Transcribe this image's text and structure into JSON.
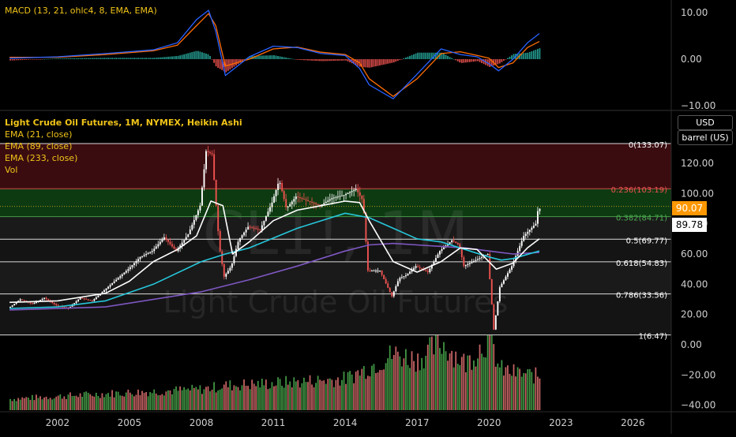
{
  "header": {
    "macd_label": "MACD (13, 21, ohlc4, 8, EMA, EMA)",
    "symbol_title": "Light Crude Oil Futures, 1M, NYMEX, Heikin Ashi",
    "ema1": "EMA (21, close)",
    "ema2": "EMA (89, close)",
    "ema3": "EMA (233, close)",
    "vol": "Vol",
    "currency": "USD",
    "unit": "barrel (US)",
    "watermark_symbol": "CL1!, 1M",
    "watermark_name": "Light Crude Oil Futures"
  },
  "price_tags": {
    "last": "90.07",
    "ema": "89.78"
  },
  "colors": {
    "up": "#26a69a",
    "down": "#ef5350",
    "candle_up": "#ffffff",
    "macd_line": "#2962ff",
    "signal_line": "#ff6d00",
    "ema21": "#ffffff",
    "ema89": "#26c6da",
    "ema233": "#7e57c2",
    "last_tag": "#ff9800",
    "fib_top": "#3b0a0a",
    "fib_green": "#0b3d0b"
  },
  "chart_data": [
    {
      "type": "bar",
      "panel": "macd",
      "y_ticks": [
        "10.00",
        "0.00",
        "−10.00"
      ],
      "y_tick_values": [
        10,
        0,
        -10
      ],
      "ylim": [
        -12,
        14
      ],
      "series": [
        {
          "kind": "line",
          "x": [
            2000,
            2002,
            2004,
            2006,
            2007,
            2007.8,
            2008.3,
            2008.6,
            2009,
            2010,
            2011,
            2012,
            2013,
            2014,
            2014.6,
            2015,
            2016,
            2017,
            2018,
            2018.8,
            2019.5,
            2020,
            2020.4,
            2021,
            2021.6,
            2022.1
          ],
          "values": [
            0.2,
            0.5,
            1.2,
            2.0,
            3.5,
            8.5,
            10.5,
            6,
            -3.5,
            0.5,
            2.8,
            2.5,
            1.2,
            0.8,
            -2,
            -5.5,
            -8.5,
            -3.2,
            2.2,
            1,
            0.5,
            -1,
            -2.5,
            0,
            3.5,
            5.5
          ]
        },
        {
          "kind": "line",
          "x": [
            2000,
            2002,
            2004,
            2006,
            2007,
            2007.8,
            2008.3,
            2008.6,
            2009,
            2010,
            2011,
            2012,
            2013,
            2014,
            2014.6,
            2015,
            2016,
            2017,
            2018,
            2018.8,
            2019.5,
            2020,
            2020.4,
            2021,
            2021.6,
            2022.1
          ],
          "values": [
            0.4,
            0.4,
            1.0,
            1.8,
            3.0,
            7.2,
            9.8,
            7.2,
            -1.5,
            0,
            2.2,
            2.6,
            1.5,
            1.0,
            -0.8,
            -4.2,
            -8.0,
            -4.2,
            1.2,
            1.6,
            0.8,
            0.2,
            -1.8,
            -0.8,
            2.5,
            3.8
          ]
        }
      ]
    },
    {
      "type": "line",
      "panel": "price",
      "x_ticks": [
        "2002",
        "2005",
        "2008",
        "2011",
        "2014",
        "2017",
        "2020",
        "2023",
        "2026"
      ],
      "x_tick_values": [
        2002,
        2005,
        2008,
        2011,
        2014,
        2017,
        2020,
        2023,
        2026
      ],
      "xlim": [
        1999.6,
        2027.6
      ],
      "y_ticks": [
        "120.00",
        "100.00",
        "80.00",
        "60.00",
        "40.00",
        "20.00",
        "0.00",
        "−20.00",
        "−40.00"
      ],
      "y_tick_values": [
        120,
        100,
        80,
        60,
        40,
        20,
        0,
        -20,
        -40
      ],
      "ylim": [
        -40,
        135
      ],
      "fib_levels": [
        {
          "label": "0(133.07)",
          "value": 133.07
        },
        {
          "label": "0.236(103.19)",
          "value": 103.19
        },
        {
          "label": "0.382(84.71)",
          "value": 84.71
        },
        {
          "label": "0.5(69.77)",
          "value": 69.77
        },
        {
          "label": "0.618(54.83)",
          "value": 54.83
        },
        {
          "label": "0.786(33.56)",
          "value": 33.56
        },
        {
          "label": "1(6.47)",
          "value": 6.47
        }
      ],
      "extra_level": 91.5,
      "price": {
        "x": [
          2000,
          2000.5,
          2001,
          2001.5,
          2002,
          2002.5,
          2003,
          2003.5,
          2004,
          2004.5,
          2005,
          2005.5,
          2006,
          2006.5,
          2007,
          2007.5,
          2008,
          2008.25,
          2008.5,
          2008.8,
          2009,
          2009.3,
          2009.6,
          2010,
          2010.5,
          2011,
          2011.3,
          2011.6,
          2012,
          2012.5,
          2013,
          2013.5,
          2014,
          2014.5,
          2014.8,
          2015,
          2015.5,
          2016,
          2016.3,
          2016.6,
          2017,
          2017.5,
          2018,
          2018.5,
          2018.8,
          2019,
          2019.5,
          2020,
          2020.25,
          2020.5,
          2021,
          2021.5,
          2022,
          2022.1
        ],
        "values": [
          24,
          30,
          27,
          31,
          26,
          24,
          31,
          29,
          36,
          43,
          50,
          58,
          62,
          71,
          62,
          73,
          92,
          128,
          126,
          65,
          45,
          52,
          69,
          78,
          76,
          94,
          109,
          90,
          98,
          95,
          92,
          97,
          99,
          103,
          95,
          49,
          49,
          32,
          44,
          46,
          52,
          48,
          62,
          69,
          66,
          52,
          56,
          60,
          10,
          38,
          52,
          72,
          80,
          90
        ]
      },
      "ema21": {
        "x": [
          2000,
          2002,
          2004,
          2005,
          2006,
          2007,
          2007.8,
          2008.4,
          2008.9,
          2009.3,
          2010,
          2011,
          2012,
          2013,
          2014,
          2014.6,
          2015,
          2016,
          2017,
          2018,
          2018.8,
          2019.5,
          2020.3,
          2021,
          2021.6,
          2022.1
        ],
        "values": [
          28,
          29,
          34,
          42,
          55,
          63,
          72,
          95,
          92,
          60,
          68,
          82,
          89,
          92,
          95,
          94,
          82,
          55,
          48,
          55,
          64,
          63,
          50,
          54,
          64,
          70
        ]
      },
      "ema89": {
        "x": [
          2000,
          2002,
          2004,
          2006,
          2008,
          2009,
          2010,
          2012,
          2014,
          2015,
          2016,
          2017,
          2018,
          2019,
          2020,
          2020.5,
          2021,
          2022.1
        ],
        "values": [
          24,
          25,
          29,
          40,
          55,
          60,
          64,
          77,
          87,
          84,
          77,
          70,
          68,
          63,
          58,
          56,
          57,
          62
        ]
      },
      "ema233": {
        "x": [
          2000,
          2004,
          2008,
          2010,
          2012,
          2014,
          2015,
          2016,
          2017,
          2018,
          2019,
          2020,
          2021,
          2022.1
        ],
        "values": [
          23,
          25,
          35,
          43,
          52,
          62,
          66,
          67,
          66,
          65,
          64,
          62,
          60,
          61
        ]
      },
      "volume_rel": {
        "x": [
          2000,
          2004,
          2008,
          2009,
          2011,
          2014,
          2015,
          2016,
          2017,
          2018,
          2019,
          2020,
          2020.4,
          2021,
          2022.1
        ],
        "values": [
          0.15,
          0.22,
          0.28,
          0.33,
          0.36,
          0.42,
          0.58,
          0.75,
          0.68,
          0.9,
          0.62,
          0.98,
          0.55,
          0.5,
          0.45
        ]
      }
    }
  ]
}
